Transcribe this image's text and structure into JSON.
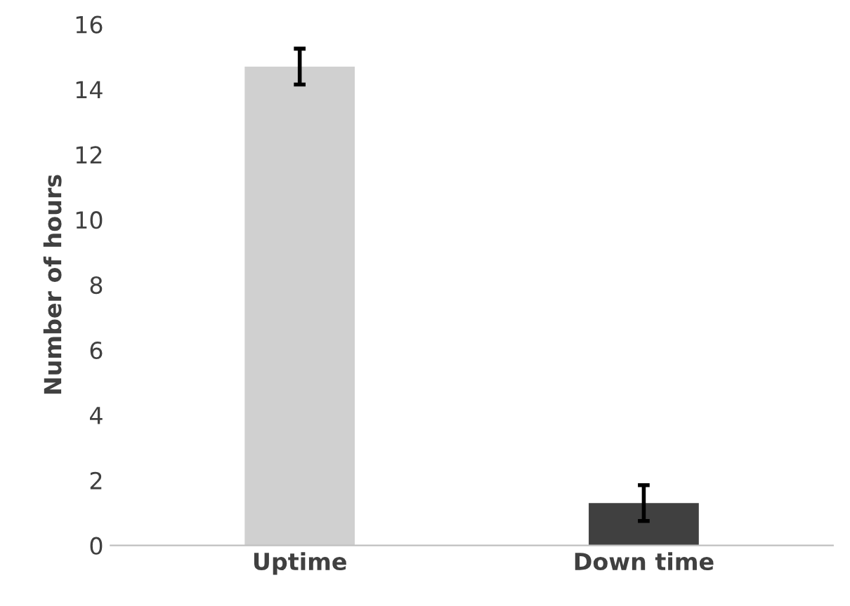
{
  "chart_data": {
    "type": "bar",
    "ylabel": "Number of hours",
    "categories": [
      "Uptime",
      "Down time"
    ],
    "values": [
      14.7,
      1.3
    ],
    "colors": [
      "#d0d0d0",
      "#404040"
    ],
    "errors": [
      0.55,
      0.55
    ],
    "ylim": [
      0,
      16
    ],
    "yticks": [
      0,
      2,
      4,
      6,
      8,
      10,
      12,
      14,
      16
    ],
    "grid": false
  }
}
